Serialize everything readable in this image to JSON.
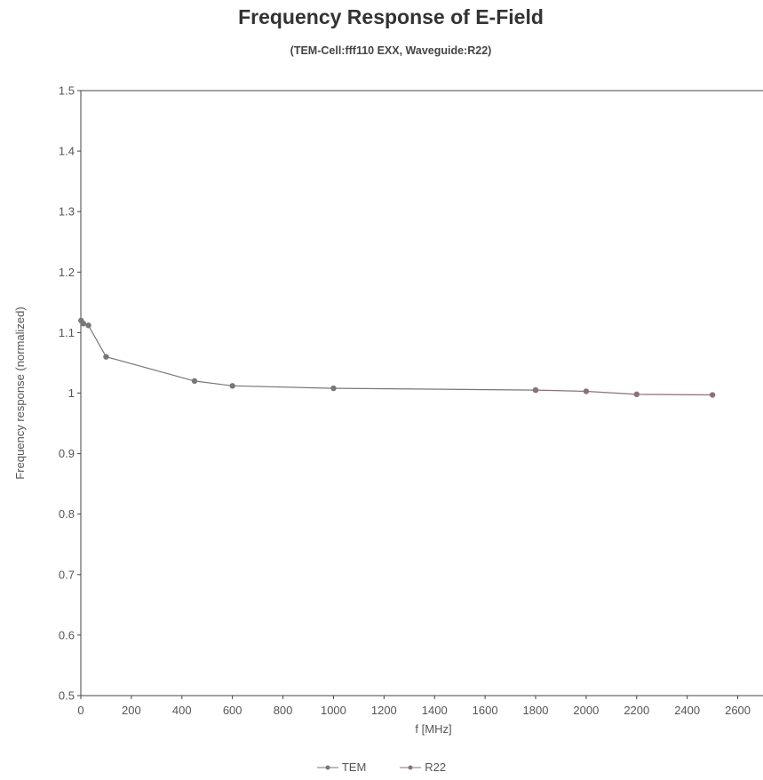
{
  "chart_data": {
    "type": "line",
    "title": "Frequency Response of E-Field",
    "subtitle": "(TEM-Cell:fff110 EXX, Waveguide:R22)",
    "xlabel": "f [MHz]",
    "ylabel": "Frequency response (normalized)",
    "xlim": [
      0,
      2700
    ],
    "ylim": [
      0.5,
      1.5
    ],
    "xticks": [
      "0",
      "200",
      "400",
      "600",
      "800",
      "1000",
      "1200",
      "1400",
      "1600",
      "1800",
      "2000",
      "2200",
      "2400",
      "2600"
    ],
    "yticks": [
      "0.5",
      "0.6",
      "0.7",
      "0.8",
      "0.9",
      "1",
      "1.1",
      "1.2",
      "1.3",
      "1.4",
      "1.5"
    ],
    "grid": false,
    "legend_position": "bottom",
    "series": [
      {
        "name": "TEM",
        "color": "#777777",
        "points": [
          [
            1,
            1.12
          ],
          [
            10,
            1.115
          ],
          [
            30,
            1.112
          ],
          [
            100,
            1.06
          ],
          [
            450,
            1.02
          ],
          [
            600,
            1.012
          ],
          [
            1000,
            1.008
          ],
          [
            1800,
            1.005
          ]
        ]
      },
      {
        "name": "R22",
        "color": "#8a7178",
        "points": [
          [
            1800,
            1.005
          ],
          [
            2000,
            1.003
          ],
          [
            2200,
            0.998
          ],
          [
            2500,
            0.997
          ]
        ]
      }
    ]
  }
}
